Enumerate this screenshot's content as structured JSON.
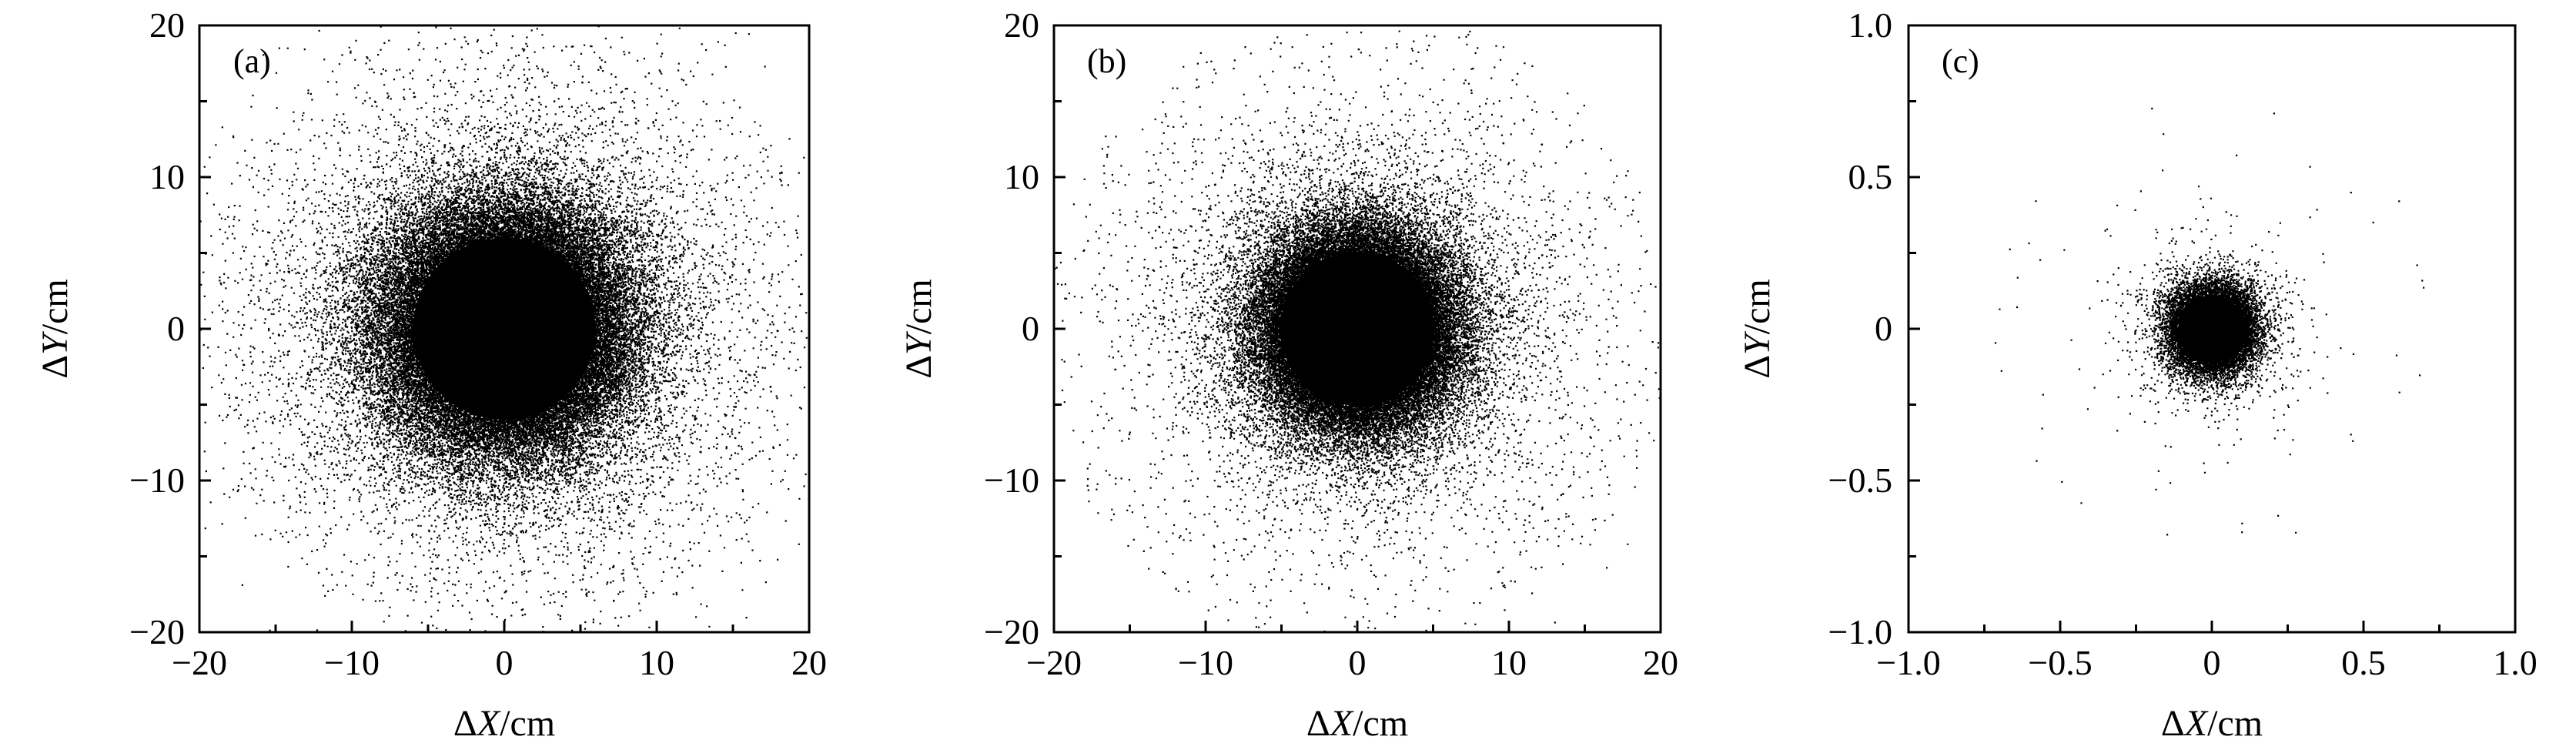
{
  "figure": {
    "panels": [
      {
        "id": "a",
        "label": "(a)",
        "x_title_prefix": "ΔX",
        "x_title_suffix": "/cm",
        "y_title_prefix": "ΔY",
        "y_title_suffix": "/cm",
        "xticks": [
          "−20",
          "−10",
          "0",
          "10",
          "20"
        ],
        "yticks": [
          "20",
          "10",
          "0",
          "−10",
          "−20"
        ]
      },
      {
        "id": "b",
        "label": "(b)",
        "x_title_prefix": "ΔX",
        "x_title_suffix": "/cm",
        "y_title_prefix": "ΔY",
        "y_title_suffix": "/cm",
        "xticks": [
          "−20",
          "−10",
          "0",
          "10",
          "20"
        ],
        "yticks": [
          "20",
          "10",
          "0",
          "−10",
          "−20"
        ]
      },
      {
        "id": "c",
        "label": "(c)",
        "x_title_prefix": "ΔX",
        "x_title_suffix": "/cm",
        "y_title_prefix": "ΔY",
        "y_title_suffix": "/cm",
        "xticks": [
          "−1.0",
          "−0.5",
          "0",
          "0.5",
          "1.0"
        ],
        "yticks": [
          "1.0",
          "0.5",
          "0",
          "−0.5",
          "−1.0"
        ]
      }
    ]
  },
  "chart_data": [
    {
      "type": "scatter",
      "panel_label": "(a)",
      "title": "",
      "xlabel": "ΔX/cm",
      "ylabel": "ΔY/cm",
      "xlim": [
        -20,
        20
      ],
      "ylim": [
        -20,
        20
      ],
      "xticks": [
        -20,
        -10,
        0,
        10,
        20
      ],
      "yticks": [
        -20,
        -10,
        0,
        10,
        20
      ],
      "minor_tick_step": 5,
      "grid": false,
      "legend": null,
      "marker_color": "#000000",
      "distribution": {
        "shape": "2D radially symmetric point cloud centered at origin",
        "center": [
          0,
          0
        ],
        "solid_core_radius": 6.5,
        "dense_halo_radius": 11,
        "sparse_extent": 20,
        "approx_sigma": 4.0
      }
    },
    {
      "type": "scatter",
      "panel_label": "(b)",
      "title": "",
      "xlabel": "ΔX/cm",
      "ylabel": "ΔY/cm",
      "xlim": [
        -20,
        20
      ],
      "ylim": [
        -20,
        20
      ],
      "xticks": [
        -20,
        -10,
        0,
        10,
        20
      ],
      "yticks": [
        -20,
        -10,
        0,
        10,
        20
      ],
      "minor_tick_step": 5,
      "grid": false,
      "legend": null,
      "marker_color": "#000000",
      "distribution": {
        "shape": "2D radially symmetric point cloud centered at origin",
        "center": [
          0,
          0
        ],
        "solid_core_radius": 5.5,
        "dense_halo_radius": 8,
        "sparse_extent": 20,
        "approx_sigma": 3.0
      }
    },
    {
      "type": "scatter",
      "panel_label": "(c)",
      "title": "",
      "xlabel": "ΔX/cm",
      "ylabel": "ΔY/cm",
      "xlim": [
        -1.0,
        1.0
      ],
      "ylim": [
        -1.0,
        1.0
      ],
      "xticks": [
        -1.0,
        -0.5,
        0,
        0.5,
        1.0
      ],
      "yticks": [
        -1.0,
        -0.5,
        0,
        0.5,
        1.0
      ],
      "minor_tick_step": 0.25,
      "grid": false,
      "legend": null,
      "marker_color": "#000000",
      "distribution": {
        "shape": "2D radially symmetric point cloud centered at origin",
        "center": [
          0,
          0
        ],
        "solid_core_radius": 0.12,
        "dense_halo_radius": 0.25,
        "sparse_extent": 0.72,
        "approx_sigma": 0.07
      }
    }
  ]
}
